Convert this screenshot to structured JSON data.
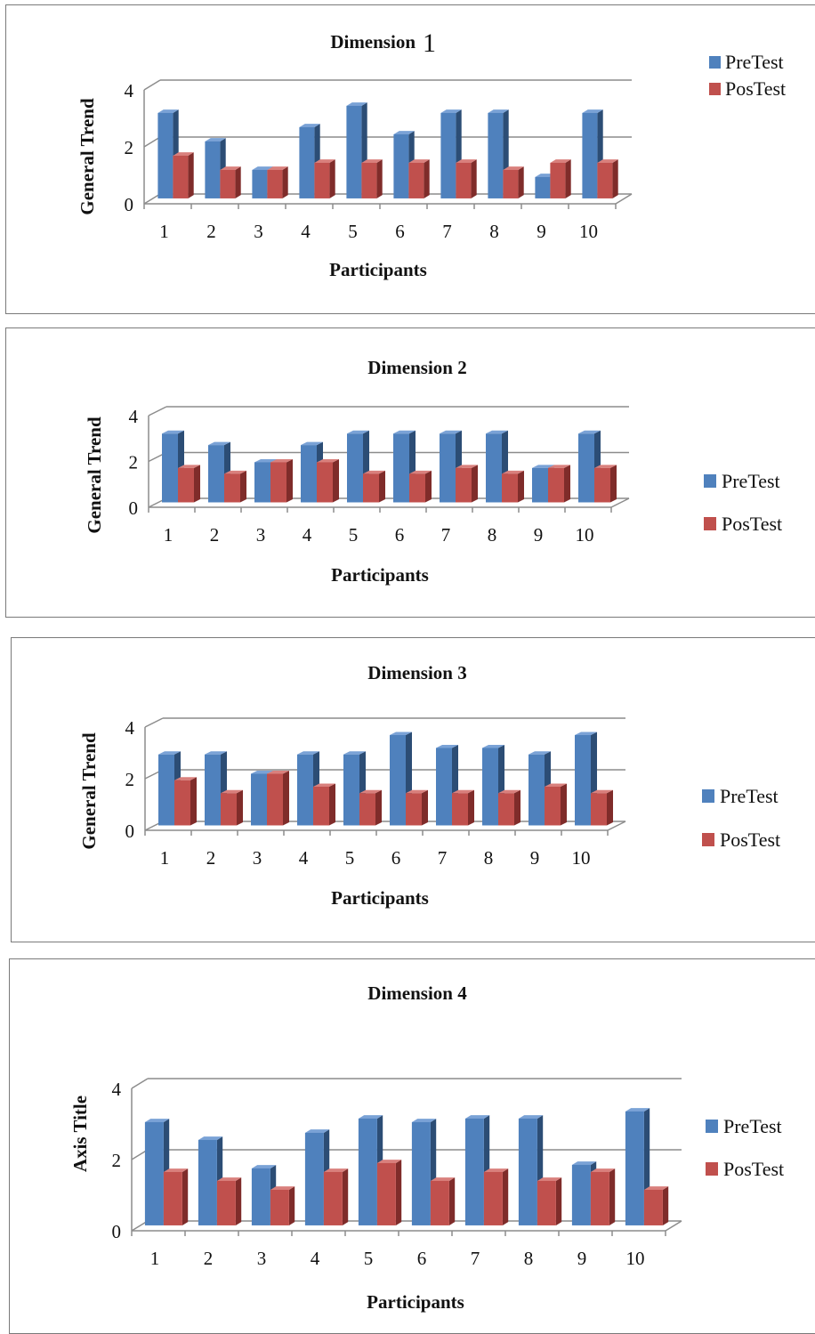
{
  "colors": {
    "pretest_front": "#4f81bd",
    "pretest_side": "#2c4d75",
    "pretest_top": "#7aa2d6",
    "postest_front": "#c0504d",
    "postest_side": "#7f2c2a",
    "postest_top": "#d9807d",
    "gridline": "#8c8c8c"
  },
  "chart_data": [
    {
      "type": "bar",
      "title": "Dimension",
      "title_suffix": "1",
      "xlabel": "Participants",
      "ylabel": "General Trend",
      "categories": [
        "1",
        "2",
        "3",
        "4",
        "5",
        "6",
        "7",
        "8",
        "9",
        "10"
      ],
      "yticks": [
        "0",
        "2",
        "4"
      ],
      "ylim": [
        0,
        4
      ],
      "legend_position": "top-right",
      "series": [
        {
          "name": "PreTest",
          "values": [
            3,
            2,
            1,
            2.5,
            3.25,
            2.25,
            3,
            3,
            0.75,
            3
          ]
        },
        {
          "name": "PosTest",
          "values": [
            1.5,
            1,
            1,
            1.25,
            1.25,
            1.25,
            1.25,
            1,
            1.25,
            1.25
          ]
        }
      ]
    },
    {
      "type": "bar",
      "title": "Dimension 2",
      "title_suffix": "",
      "xlabel": "Participants",
      "ylabel": "General Trend",
      "categories": [
        "1",
        "2",
        "3",
        "4",
        "5",
        "6",
        "7",
        "8",
        "9",
        "10"
      ],
      "yticks": [
        "0",
        "2",
        "4"
      ],
      "ylim": [
        0,
        4
      ],
      "legend_position": "right",
      "series": [
        {
          "name": "PreTest",
          "values": [
            3,
            2.5,
            1.75,
            2.5,
            3,
            3,
            3,
            3,
            1.5,
            3
          ]
        },
        {
          "name": "PosTest",
          "values": [
            1.5,
            1.25,
            1.75,
            1.75,
            1.25,
            1.25,
            1.5,
            1.25,
            1.5,
            1.5
          ]
        }
      ]
    },
    {
      "type": "bar",
      "title": "Dimension 3",
      "title_suffix": "",
      "xlabel": "Participants",
      "ylabel": "General Trend",
      "categories": [
        "1",
        "2",
        "3",
        "4",
        "5",
        "6",
        "7",
        "8",
        "9",
        "10"
      ],
      "yticks": [
        "0",
        "2",
        "4"
      ],
      "ylim": [
        0,
        4
      ],
      "legend_position": "right",
      "series": [
        {
          "name": "PreTest",
          "values": [
            2.75,
            2.75,
            2,
            2.75,
            2.75,
            3.5,
            3,
            3,
            2.75,
            3.5
          ]
        },
        {
          "name": "PosTest",
          "values": [
            1.75,
            1.25,
            2,
            1.5,
            1.25,
            1.25,
            1.25,
            1.25,
            1.5,
            1.25
          ]
        }
      ]
    },
    {
      "type": "bar",
      "title": "Dimension 4",
      "title_suffix": "",
      "xlabel": "Participants",
      "ylabel": "Axis Title",
      "categories": [
        "1",
        "2",
        "3",
        "4",
        "5",
        "6",
        "7",
        "8",
        "9",
        "10"
      ],
      "yticks": [
        "0",
        "2",
        "4"
      ],
      "ylim": [
        0,
        4
      ],
      "legend_position": "right",
      "series": [
        {
          "name": "PreTest",
          "values": [
            2.9,
            2.4,
            1.6,
            2.6,
            3,
            2.9,
            3,
            3,
            1.7,
            3.2
          ]
        },
        {
          "name": "PosTest",
          "values": [
            1.5,
            1.25,
            1,
            1.5,
            1.75,
            1.25,
            1.5,
            1.25,
            1.5,
            1
          ]
        }
      ]
    }
  ]
}
